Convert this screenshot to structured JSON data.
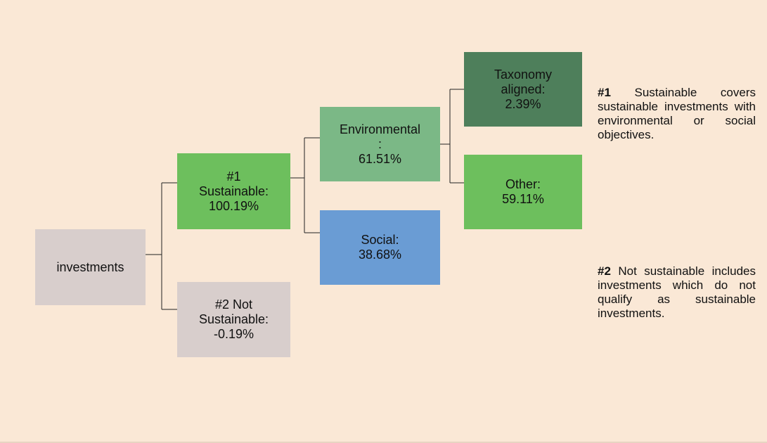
{
  "nodes": [
    {
      "lines": [
        "investments"
      ]
    },
    {
      "lines": [
        "#1",
        "Sustainable:",
        "100.19%"
      ]
    },
    {
      "lines": [
        "#2 Not",
        "Sustainable:",
        "-0.19%"
      ]
    },
    {
      "lines": [
        "Environmental",
        ":",
        "61.51%"
      ]
    },
    {
      "lines": [
        "Social:",
        "38.68%"
      ]
    },
    {
      "lines": [
        "Taxonomy",
        "aligned:",
        "2.39%"
      ]
    },
    {
      "lines": [
        "Other:",
        "59.11%"
      ]
    }
  ],
  "notes": [
    {
      "tag": "#1",
      "text": "Sustainable covers sustainable investments with environmental or social objectives."
    },
    {
      "tag": "#2",
      "text": "Not sustainable includes investments which do not qualify as sustainable investments."
    }
  ]
}
